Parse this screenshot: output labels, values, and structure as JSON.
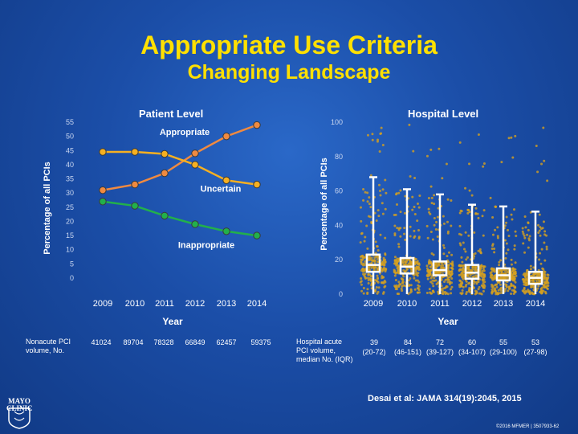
{
  "slide": {
    "title": "Appropriate Use Criteria",
    "subtitle": "Changing Landscape",
    "reference": "Desai et al: JAMA 314(19):2045, 2015",
    "copyright": "©2016 MFMER | 3507933-62",
    "logo_text": "MAYO CLINIC"
  },
  "left_table": {
    "label": "Nonacute PCI volume, No.",
    "values": [
      "41024",
      "89704",
      "78328",
      "66849",
      "62457",
      "59375"
    ]
  },
  "right_table": {
    "label": "Hospital acute PCI volume, median No. (IQR)",
    "medians": [
      "39",
      "84",
      "72",
      "60",
      "55",
      "53"
    ],
    "iqr": [
      "(20-72)",
      "(46-151)",
      "(39-127)",
      "(34-107)",
      "(29-100)",
      "(27-98)"
    ]
  },
  "chart_data": [
    {
      "type": "line",
      "title": "Patient Level",
      "xlabel": "Year",
      "ylabel": "Percentage of all PCIs",
      "x": [
        "2009",
        "2010",
        "2011",
        "2012",
        "2013",
        "2014"
      ],
      "ylim": [
        0,
        55
      ],
      "yticks": [
        0,
        5,
        10,
        15,
        20,
        25,
        30,
        35,
        40,
        45,
        50,
        55
      ],
      "series": [
        {
          "name": "Appropriate",
          "values": [
            31,
            33,
            37,
            44,
            50,
            54
          ],
          "color": "#f08a40"
        },
        {
          "name": "Uncertain",
          "values": [
            44.5,
            44.5,
            43.8,
            40,
            34.5,
            33
          ],
          "color": "#f6b021"
        },
        {
          "name": "Inappropriate",
          "values": [
            27,
            25.5,
            22,
            19,
            16.5,
            15
          ],
          "color": "#22b04b"
        }
      ]
    },
    {
      "type": "box",
      "title": "Hospital Level",
      "xlabel": "Year",
      "ylabel": "Percentage of all PCIs",
      "x": [
        "2009",
        "2010",
        "2011",
        "2012",
        "2013",
        "2014"
      ],
      "ylim": [
        0,
        100
      ],
      "yticks": [
        0,
        20,
        40,
        60,
        80,
        100
      ],
      "boxes": [
        {
          "whisker_low": 0,
          "q1": 13,
          "median": 17,
          "q3": 23,
          "whisker_high": 68
        },
        {
          "whisker_low": 0,
          "q1": 12,
          "median": 16,
          "q3": 21,
          "whisker_high": 61
        },
        {
          "whisker_low": 0,
          "q1": 11,
          "median": 14,
          "q3": 19,
          "whisker_high": 58
        },
        {
          "whisker_low": 0,
          "q1": 9,
          "median": 12.5,
          "q3": 17,
          "whisker_high": 52
        },
        {
          "whisker_low": 0,
          "q1": 8,
          "median": 11,
          "q3": 15,
          "whisker_high": 51
        },
        {
          "whisker_low": 0,
          "q1": 6,
          "median": 9.5,
          "q3": 13,
          "whisker_high": 48
        }
      ]
    }
  ]
}
